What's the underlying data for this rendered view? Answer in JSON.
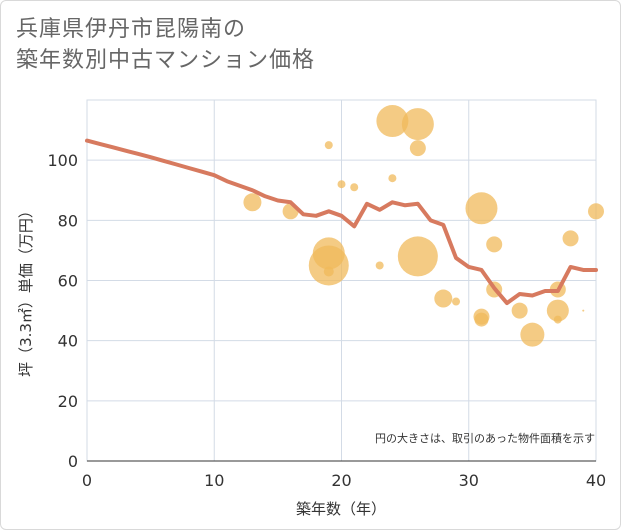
{
  "title": {
    "line1": "兵庫県伊丹市昆陽南の",
    "line2": "築年数別中古マンション価格"
  },
  "chart_data": {
    "type": "scatter",
    "xlabel": "築年数（年）",
    "ylabel": "坪（3.3㎡）単価（万円）",
    "xlim": [
      0,
      40
    ],
    "ylim": [
      0,
      120
    ],
    "xticks": [
      0,
      10,
      20,
      30,
      40
    ],
    "yticks": [
      0,
      20,
      40,
      60,
      80,
      100
    ],
    "grid": true,
    "note": "円の大きさは、取引のあった物件面積を示す",
    "colors": {
      "bubble": "#f0b95b",
      "line": "#d77a5f",
      "grid": "#d3dbe6"
    },
    "trend_line": {
      "x": [
        0,
        1,
        2,
        3,
        4,
        5,
        6,
        7,
        8,
        9,
        10,
        11,
        12,
        13,
        14,
        15,
        16,
        17,
        18,
        19,
        20,
        21,
        22,
        23,
        24,
        25,
        26,
        27,
        28,
        29,
        30,
        31,
        32,
        33,
        34,
        35,
        36,
        37,
        38,
        39,
        40
      ],
      "y": [
        106.5,
        105.4,
        104.3,
        103.2,
        102.1,
        101.0,
        99.8,
        98.6,
        97.4,
        96.2,
        95.0,
        93.0,
        91.5,
        90.0,
        88.0,
        86.6,
        86.0,
        82.0,
        81.5,
        83.0,
        81.5,
        78.0,
        85.5,
        83.5,
        86.0,
        85.0,
        85.5,
        80.0,
        78.5,
        67.5,
        64.5,
        63.5,
        57.5,
        52.5,
        55.5,
        55.0,
        56.5,
        56.5,
        64.5,
        63.5,
        63.5
      ]
    },
    "points": [
      {
        "x": 13,
        "y": 86,
        "size": 9
      },
      {
        "x": 16,
        "y": 83,
        "size": 8
      },
      {
        "x": 19,
        "y": 105,
        "size": 4
      },
      {
        "x": 19,
        "y": 69,
        "size": 16
      },
      {
        "x": 19,
        "y": 65,
        "size": 20
      },
      {
        "x": 19,
        "y": 63,
        "size": 5
      },
      {
        "x": 20,
        "y": 92,
        "size": 4
      },
      {
        "x": 21,
        "y": 91,
        "size": 4
      },
      {
        "x": 23,
        "y": 65,
        "size": 4
      },
      {
        "x": 24,
        "y": 113,
        "size": 16
      },
      {
        "x": 24,
        "y": 94,
        "size": 4
      },
      {
        "x": 26,
        "y": 112,
        "size": 16
      },
      {
        "x": 26,
        "y": 104,
        "size": 8
      },
      {
        "x": 26,
        "y": 68,
        "size": 20
      },
      {
        "x": 28,
        "y": 54,
        "size": 9
      },
      {
        "x": 29,
        "y": 53,
        "size": 4
      },
      {
        "x": 31,
        "y": 84,
        "size": 16
      },
      {
        "x": 31,
        "y": 48,
        "size": 8
      },
      {
        "x": 31,
        "y": 47,
        "size": 7
      },
      {
        "x": 32,
        "y": 72,
        "size": 8
      },
      {
        "x": 32,
        "y": 57,
        "size": 8
      },
      {
        "x": 34,
        "y": 50,
        "size": 8
      },
      {
        "x": 35,
        "y": 42,
        "size": 12
      },
      {
        "x": 37,
        "y": 57,
        "size": 8
      },
      {
        "x": 37,
        "y": 50,
        "size": 11
      },
      {
        "x": 37,
        "y": 47,
        "size": 4
      },
      {
        "x": 38,
        "y": 74,
        "size": 8
      },
      {
        "x": 39,
        "y": 50,
        "size": 1
      },
      {
        "x": 40,
        "y": 83,
        "size": 8
      }
    ]
  }
}
